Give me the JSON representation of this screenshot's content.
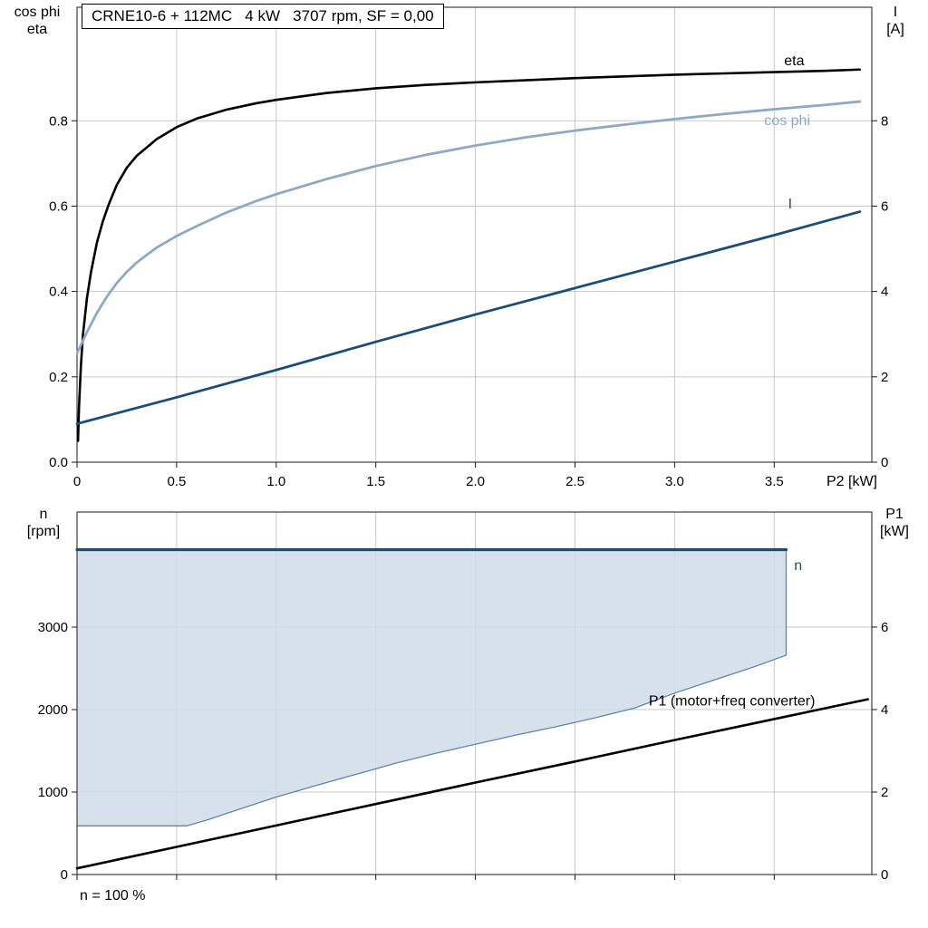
{
  "title_box": "CRNE10-6 + 112MC   4 kW   3707 rpm, SF = 0,00",
  "labels": {
    "y_left_top_1": "cos phi",
    "y_left_top_2": "eta",
    "y_right_top_1": "I",
    "y_right_top_2": "[A]",
    "x_axis_top": "P2 [kW]",
    "y_left_bottom_1": "n",
    "y_left_bottom_2": "[rpm]",
    "y_right_bottom_1": "P1",
    "y_right_bottom_2": "[kW]",
    "note": "n = 100 %"
  },
  "colors": {
    "grid": "#c9c9c9",
    "frame": "#1a1a1a",
    "tick": "#1a1a1a",
    "eta": "#000000",
    "cos_phi": "#8fa9c4",
    "current": "#1a4e7a",
    "speed": "#1a4e7a",
    "p1": "#000000",
    "area_fill": "#cfdce8",
    "area_outline": "#5e86ab"
  },
  "chart_data": [
    {
      "type": "line",
      "title": "CRNE10-6 + 112MC   4 kW   3707 rpm, SF = 0,00",
      "x_axis": {
        "label": "P2 [kW]",
        "min": 0,
        "max": 3.99,
        "ticks": [
          0,
          0.5,
          1,
          1.5,
          2,
          2.5,
          3,
          3.5
        ],
        "tick_labels": [
          "0",
          "0.5",
          "1.0",
          "1.5",
          "2.0",
          "2.5",
          "3.0",
          "3.5"
        ]
      },
      "y_left": {
        "label": "cos phi / eta",
        "min": 0,
        "max": 1.066,
        "ticks": [
          0,
          0.2,
          0.4,
          0.6,
          0.8
        ],
        "tick_labels": [
          "0.0",
          "0.2",
          "0.4",
          "0.6",
          "0.8"
        ]
      },
      "y_right": {
        "label": "I [A]",
        "min": 0,
        "max": 10.66,
        "ticks": [
          0,
          2,
          4,
          6,
          8
        ],
        "tick_labels": [
          "0",
          "2",
          "4",
          "6",
          "8"
        ]
      },
      "series": [
        {
          "name": "eta",
          "axis": "left",
          "color": "#000000",
          "width": 2.6,
          "points": [
            [
              0.005,
              0.05
            ],
            [
              0.01,
              0.13
            ],
            [
              0.02,
              0.23
            ],
            [
              0.03,
              0.3
            ],
            [
              0.05,
              0.385
            ],
            [
              0.07,
              0.445
            ],
            [
              0.1,
              0.515
            ],
            [
              0.13,
              0.565
            ],
            [
              0.16,
              0.605
            ],
            [
              0.2,
              0.65
            ],
            [
              0.25,
              0.69
            ],
            [
              0.3,
              0.718
            ],
            [
              0.4,
              0.757
            ],
            [
              0.5,
              0.785
            ],
            [
              0.6,
              0.805
            ],
            [
              0.75,
              0.826
            ],
            [
              0.9,
              0.841
            ],
            [
              1.0,
              0.849
            ],
            [
              1.25,
              0.865
            ],
            [
              1.5,
              0.876
            ],
            [
              1.75,
              0.884
            ],
            [
              2.0,
              0.89
            ],
            [
              2.25,
              0.895
            ],
            [
              2.5,
              0.9
            ],
            [
              2.75,
              0.904
            ],
            [
              3.0,
              0.908
            ],
            [
              3.25,
              0.911
            ],
            [
              3.5,
              0.914
            ],
            [
              3.75,
              0.917
            ],
            [
              3.93,
              0.92
            ]
          ],
          "label": {
            "text": "eta",
            "x": 3.55,
            "y": 0.93
          }
        },
        {
          "name": "cos phi",
          "axis": "left",
          "color": "#8fa9c4",
          "width": 2.8,
          "points": [
            [
              0,
              0.255
            ],
            [
              0.05,
              0.305
            ],
            [
              0.1,
              0.35
            ],
            [
              0.15,
              0.388
            ],
            [
              0.2,
              0.42
            ],
            [
              0.25,
              0.446
            ],
            [
              0.3,
              0.468
            ],
            [
              0.4,
              0.503
            ],
            [
              0.5,
              0.53
            ],
            [
              0.6,
              0.553
            ],
            [
              0.75,
              0.585
            ],
            [
              0.9,
              0.612
            ],
            [
              1.0,
              0.628
            ],
            [
              1.25,
              0.663
            ],
            [
              1.5,
              0.694
            ],
            [
              1.75,
              0.72
            ],
            [
              2.0,
              0.742
            ],
            [
              2.25,
              0.761
            ],
            [
              2.5,
              0.777
            ],
            [
              2.75,
              0.791
            ],
            [
              3.0,
              0.804
            ],
            [
              3.25,
              0.816
            ],
            [
              3.5,
              0.827
            ],
            [
              3.75,
              0.837
            ],
            [
              3.93,
              0.845
            ]
          ],
          "label": {
            "text": "cos phi",
            "x": 3.45,
            "y": 0.79
          }
        },
        {
          "name": "I",
          "axis": "right",
          "color": "#1a4e7a",
          "width": 2.8,
          "points": [
            [
              0,
              0.9
            ],
            [
              0.5,
              1.52
            ],
            [
              1.0,
              2.16
            ],
            [
              1.5,
              2.82
            ],
            [
              2.0,
              3.46
            ],
            [
              2.5,
              4.08
            ],
            [
              3.0,
              4.7
            ],
            [
              3.5,
              5.32
            ],
            [
              3.93,
              5.87
            ]
          ],
          "label": {
            "text": "I",
            "x": 3.57,
            "y": 5.95
          }
        }
      ]
    },
    {
      "type": "line-area",
      "x_axis": {
        "label": "",
        "min": 0,
        "max": 3.99,
        "ticks": [
          0,
          0.5,
          1,
          1.5,
          2,
          2.5,
          3,
          3.5
        ],
        "tick_labels": []
      },
      "y_left": {
        "label": "n [rpm]",
        "min": 0,
        "max": 4396,
        "ticks": [
          0,
          1000,
          2000,
          3000
        ],
        "tick_labels": [
          "0",
          "1000",
          "2000",
          "3000"
        ]
      },
      "y_right": {
        "label": "P1 [kW]",
        "min": 0,
        "max": 8.79,
        "ticks": [
          0,
          2,
          4,
          6
        ],
        "tick_labels": [
          "0",
          "2",
          "4",
          "6"
        ]
      },
      "area": {
        "name": "speed-operating-range",
        "fill": "#cfdce8",
        "fill_opacity": 0.85,
        "outline": "#5e86ab",
        "top_value": 3940,
        "x_end": 3.56,
        "lower_boundary": [
          [
            0,
            590
          ],
          [
            0.3,
            590
          ],
          [
            0.55,
            590
          ],
          [
            0.65,
            660
          ],
          [
            0.8,
            780
          ],
          [
            1.0,
            940
          ],
          [
            1.2,
            1080
          ],
          [
            1.4,
            1215
          ],
          [
            1.6,
            1350
          ],
          [
            1.8,
            1470
          ],
          [
            2.0,
            1580
          ],
          [
            2.2,
            1690
          ],
          [
            2.4,
            1790
          ],
          [
            2.6,
            1900
          ],
          [
            2.8,
            2020
          ],
          [
            3.0,
            2200
          ],
          [
            3.2,
            2360
          ],
          [
            3.4,
            2520
          ],
          [
            3.56,
            2660
          ]
        ]
      },
      "series": [
        {
          "name": "n",
          "axis": "left",
          "color": "#1a4e7a",
          "width": 3.2,
          "points": [
            [
              0,
              3940
            ],
            [
              3.56,
              3940
            ]
          ],
          "label": {
            "text": "n",
            "x": 3.6,
            "y": 3690
          }
        },
        {
          "name": "P1 (motor+freq converter)",
          "axis": "right",
          "color": "#000000",
          "width": 2.6,
          "points": [
            [
              0,
              0.15
            ],
            [
              0.5,
              0.67
            ],
            [
              1.0,
              1.19
            ],
            [
              1.5,
              1.71
            ],
            [
              2.0,
              2.23
            ],
            [
              2.5,
              2.74
            ],
            [
              3.0,
              3.26
            ],
            [
              3.5,
              3.77
            ],
            [
              3.97,
              4.25
            ]
          ],
          "label": {
            "text": "P1 (motor+freq converter)",
            "x": 2.87,
            "y": 4.1
          }
        }
      ],
      "note": "n = 100 %"
    }
  ]
}
